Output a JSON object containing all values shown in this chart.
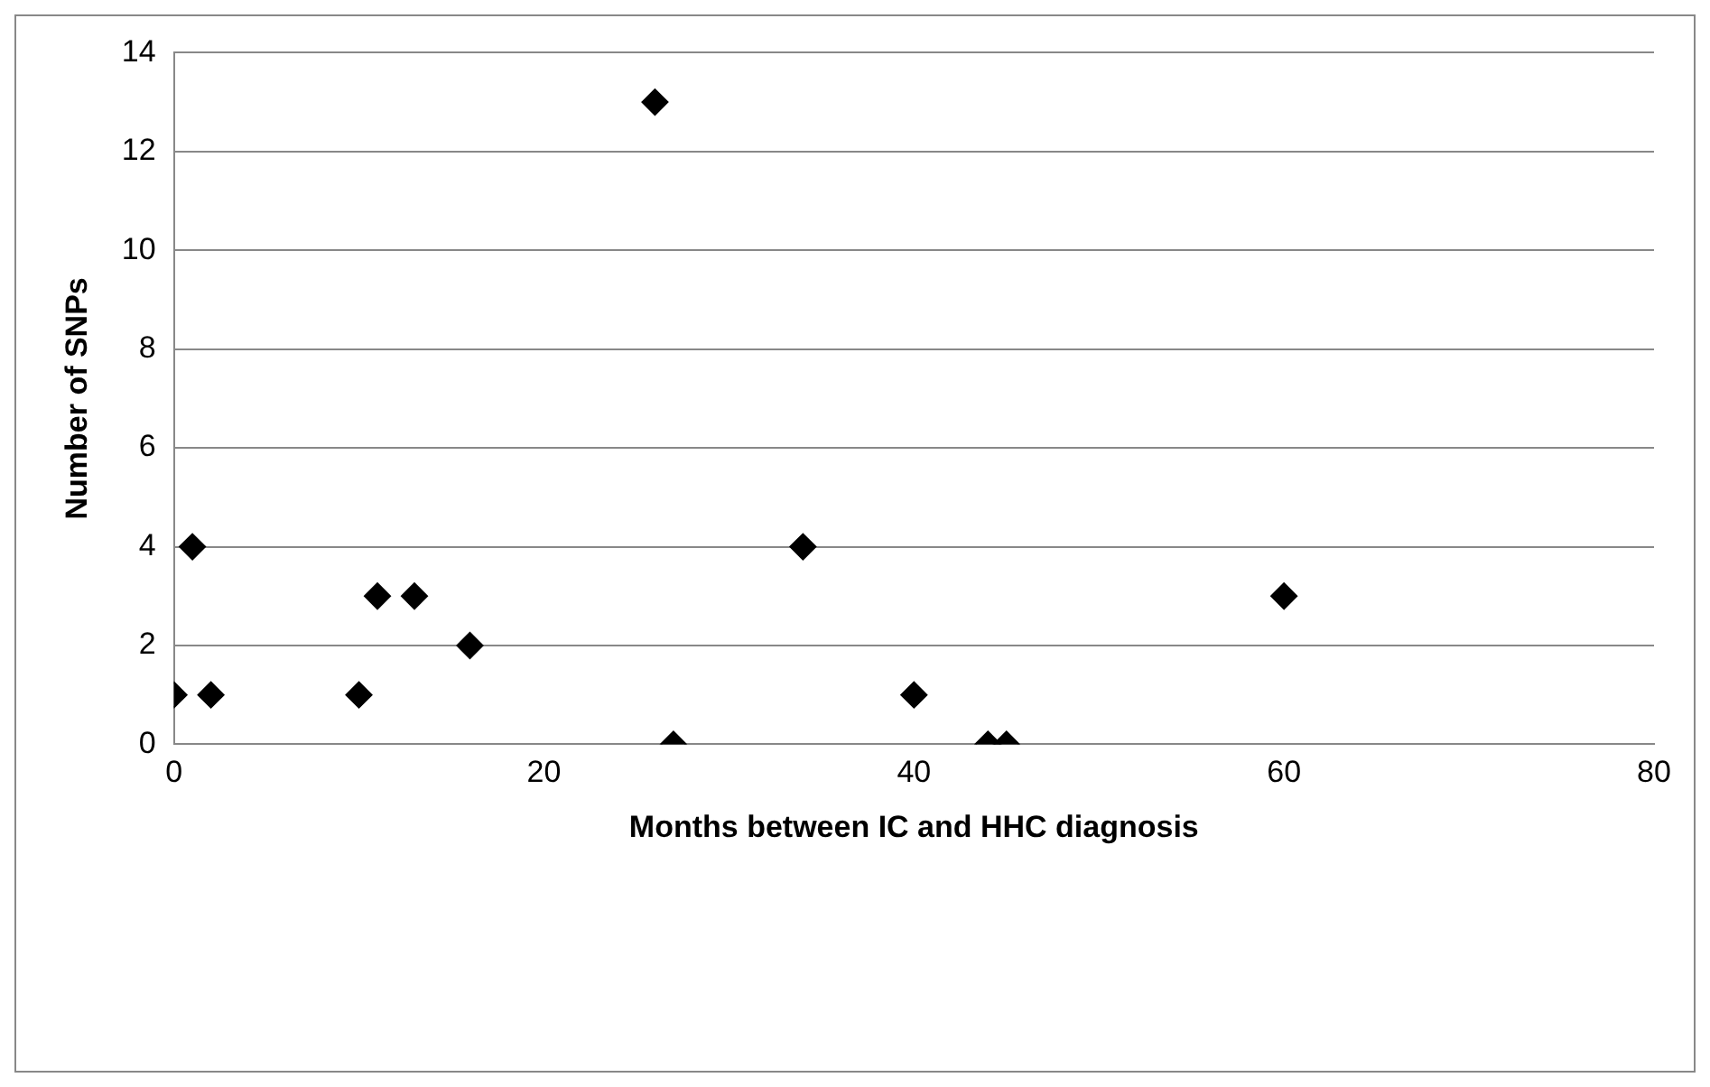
{
  "chart_data": {
    "type": "scatter",
    "xlabel": "Months between IC and HHC diagnosis",
    "ylabel": "Number of SNPs",
    "x": [
      0,
      1,
      2,
      10,
      11,
      13,
      16,
      26,
      27,
      34,
      40,
      44,
      45,
      60
    ],
    "values": [
      1,
      4,
      1,
      1,
      3,
      3,
      2,
      13,
      0,
      4,
      1,
      0,
      0,
      3
    ],
    "color": "#000000",
    "marker": "diamond",
    "xlim": [
      0,
      80
    ],
    "xticks": [
      0,
      20,
      40,
      60,
      80
    ],
    "ylim": [
      0,
      14
    ],
    "yticks": [
      0,
      2,
      4,
      6,
      8,
      10,
      12,
      14
    ],
    "grid": "y",
    "legend": false
  }
}
